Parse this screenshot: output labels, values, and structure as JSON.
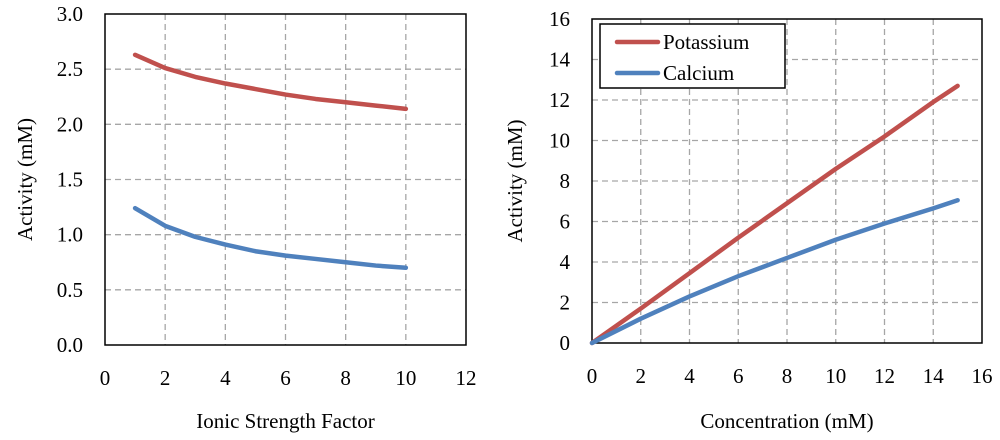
{
  "colors": {
    "potassium": "#c0504d",
    "calcium": "#4f81bd"
  },
  "chart_data": [
    {
      "type": "line",
      "title": "",
      "xlabel": "Ionic Strength Factor",
      "ylabel": "Activity (mM)",
      "xlim": [
        0,
        12
      ],
      "ylim": [
        0,
        3.0
      ],
      "xticks": [
        "0",
        "2",
        "4",
        "6",
        "8",
        "10",
        "12"
      ],
      "yticks": [
        "0.0",
        "0.5",
        "1.0",
        "1.5",
        "2.0",
        "2.5",
        "3.0"
      ],
      "grid": true,
      "series": [
        {
          "name": "Potassium",
          "color": "#c0504d",
          "x": [
            1,
            2,
            3,
            4,
            5,
            6,
            7,
            8,
            9,
            10
          ],
          "y": [
            2.63,
            2.51,
            2.43,
            2.37,
            2.32,
            2.27,
            2.23,
            2.2,
            2.17,
            2.14
          ]
        },
        {
          "name": "Calcium",
          "color": "#4f81bd",
          "x": [
            1,
            2,
            3,
            4,
            5,
            6,
            7,
            8,
            9,
            10
          ],
          "y": [
            1.24,
            1.08,
            0.98,
            0.91,
            0.85,
            0.81,
            0.78,
            0.75,
            0.72,
            0.7
          ]
        }
      ]
    },
    {
      "type": "line",
      "title": "",
      "xlabel": "Concentration (mM)",
      "ylabel": "Activity (mM)",
      "xlim": [
        0,
        16
      ],
      "ylim": [
        0,
        16
      ],
      "xticks": [
        "0",
        "2",
        "4",
        "6",
        "8",
        "10",
        "12",
        "14",
        "16"
      ],
      "yticks": [
        "0",
        "2",
        "4",
        "6",
        "8",
        "10",
        "12",
        "14",
        "16"
      ],
      "grid": true,
      "legend": {
        "position": "top-left",
        "entries": [
          "Potassium",
          "Calcium"
        ]
      },
      "series": [
        {
          "name": "Potassium",
          "color": "#c0504d",
          "x": [
            0,
            2,
            4,
            6,
            8,
            10,
            12,
            14,
            15
          ],
          "y": [
            0,
            1.7,
            3.45,
            5.2,
            6.9,
            8.6,
            10.2,
            11.9,
            12.7
          ]
        },
        {
          "name": "Calcium",
          "color": "#4f81bd",
          "x": [
            0,
            2,
            4,
            6,
            8,
            10,
            12,
            14,
            15
          ],
          "y": [
            0,
            1.2,
            2.3,
            3.3,
            4.2,
            5.1,
            5.9,
            6.65,
            7.05
          ]
        }
      ]
    }
  ]
}
